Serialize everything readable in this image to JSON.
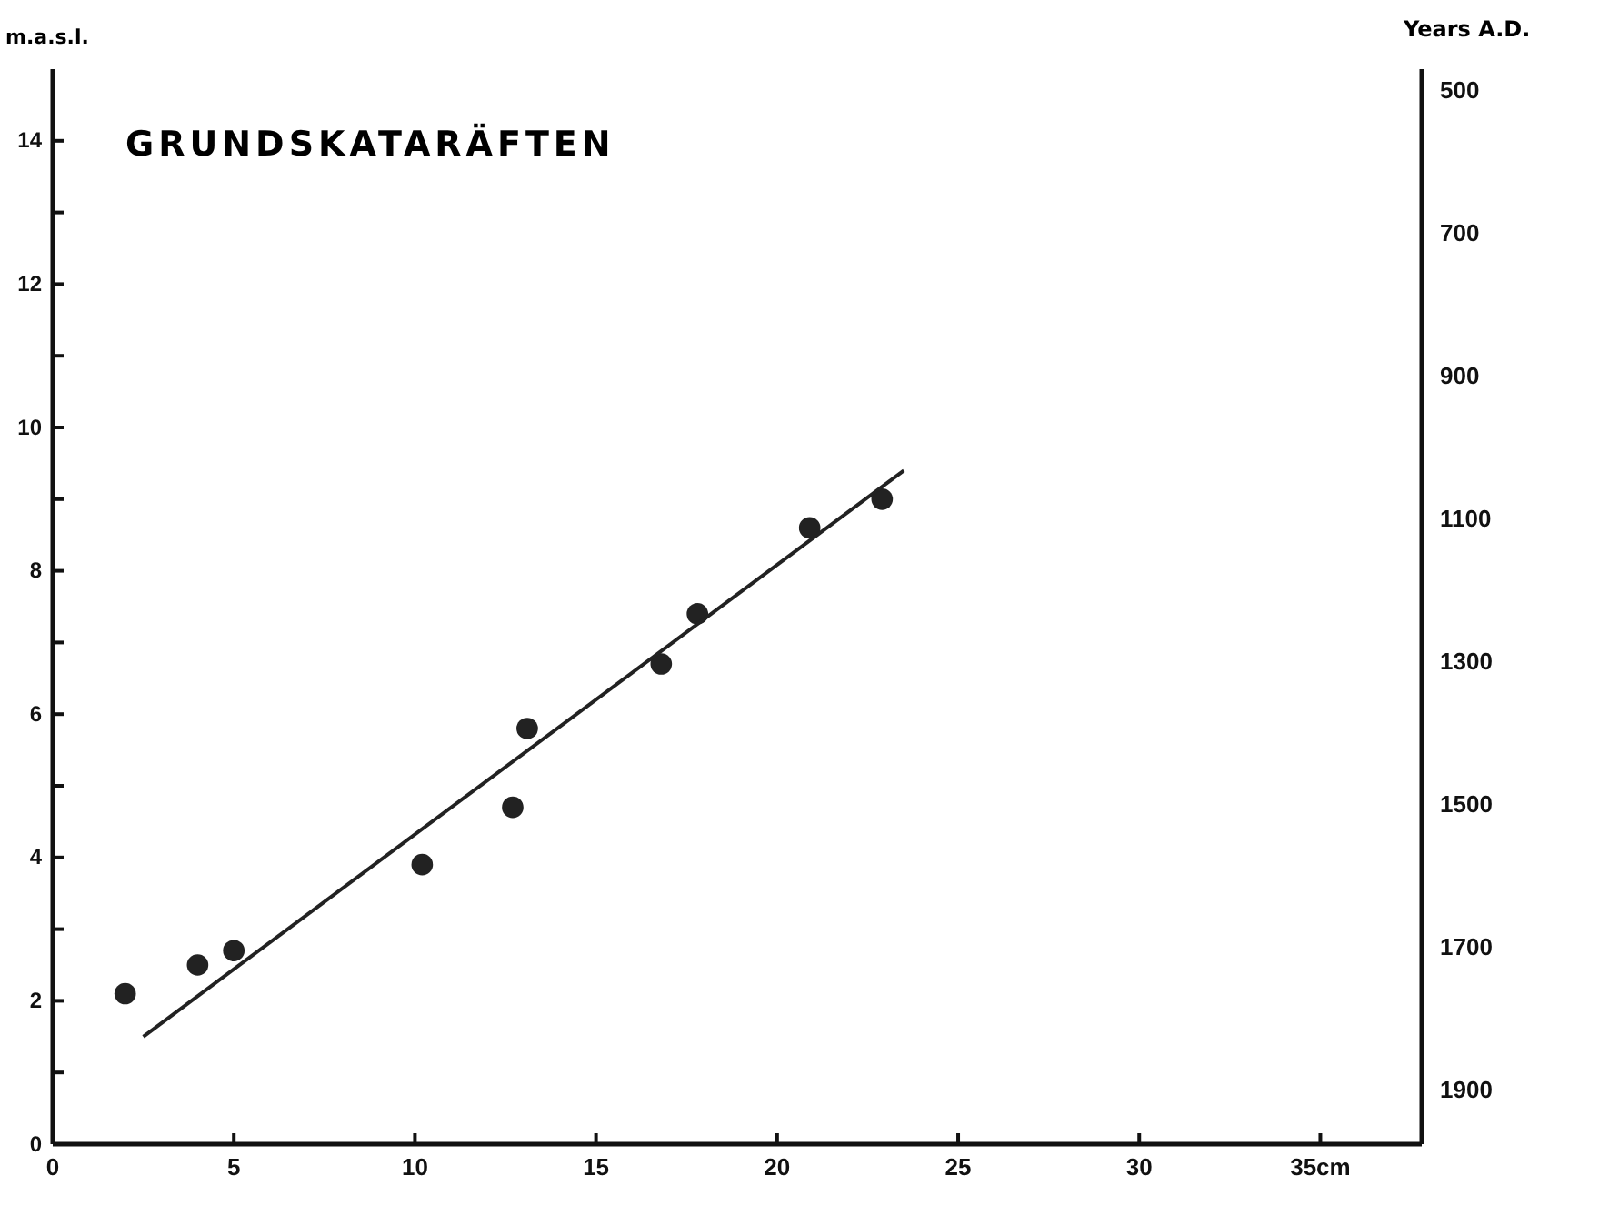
{
  "chart_data": {
    "type": "scatter",
    "title": "GRUNDSKATARÄFTEN",
    "ylabel": "m.a.s.l.",
    "y2label": "Years A.D.",
    "xlim": [
      0,
      37.8
    ],
    "xticks": [
      0,
      5,
      10,
      15,
      20,
      25,
      30,
      {
        "value": 35,
        "label": "35cm"
      }
    ],
    "ylim": [
      0,
      15
    ],
    "yticks": [
      0,
      {
        "value": 1,
        "label": null
      },
      2,
      {
        "value": 3,
        "label": null
      },
      4,
      {
        "value": 5,
        "label": null
      },
      6,
      {
        "value": 7,
        "label": null
      },
      8,
      {
        "value": 9,
        "label": null
      },
      10,
      {
        "value": 11,
        "label": null
      },
      12,
      {
        "value": 13,
        "label": null
      },
      14
    ],
    "y2lim": [
      1975,
      470
    ],
    "y2ticks": [
      500,
      700,
      900,
      1100,
      1300,
      1500,
      1700,
      1900
    ],
    "grid": false,
    "series": [
      {
        "marker": "circle",
        "color": "#222222",
        "x": [
          2.0,
          4.0,
          5.0,
          10.2,
          12.7,
          13.1,
          16.8,
          17.8,
          20.9,
          22.9
        ],
        "values": [
          2.1,
          2.5,
          2.7,
          3.9,
          4.7,
          5.8,
          6.7,
          7.4,
          8.6,
          9.0
        ]
      },
      {
        "type": "line",
        "color": "#222222",
        "line_style": "solid",
        "x": [
          2.5,
          23.5
        ],
        "values": [
          1.5,
          9.4
        ]
      }
    ]
  }
}
